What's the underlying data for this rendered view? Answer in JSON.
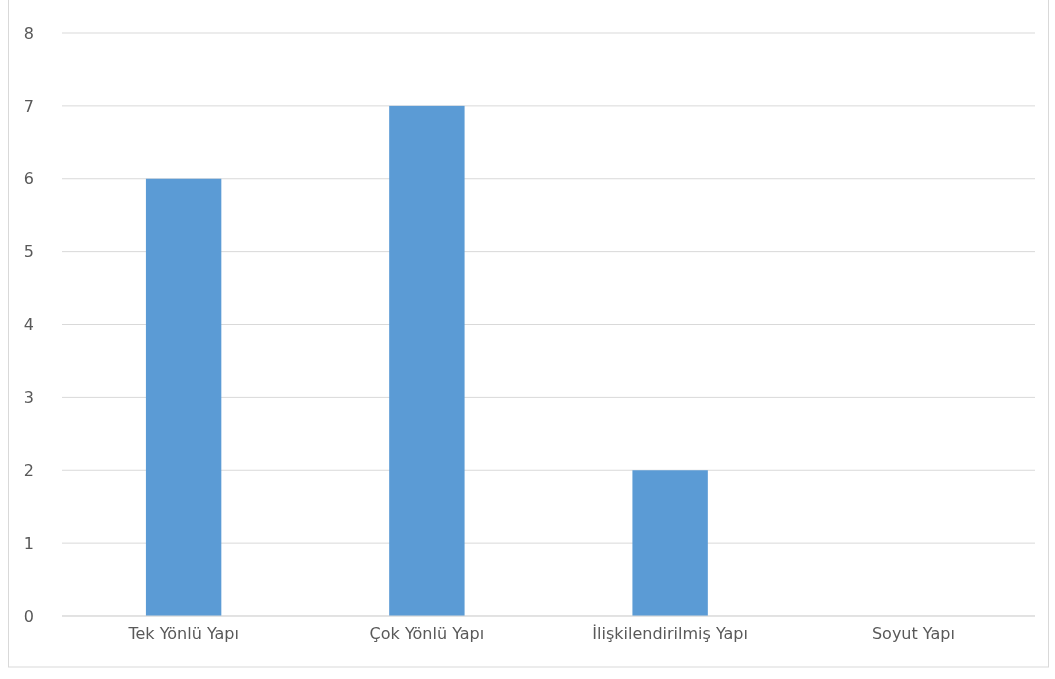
{
  "chart_data": {
    "type": "bar",
    "categories": [
      "Tek Yönlü Yapı",
      "Çok Yönlü Yapı",
      "İlişkilendirilmiş Yapı",
      "Soyut Yapı"
    ],
    "values": [
      6,
      7,
      2,
      0
    ],
    "color": "#5b9bd5",
    "ylim": [
      0,
      8
    ],
    "yticks": [
      0,
      1,
      2,
      3,
      4,
      5,
      6,
      7,
      8
    ],
    "grid": "y"
  }
}
